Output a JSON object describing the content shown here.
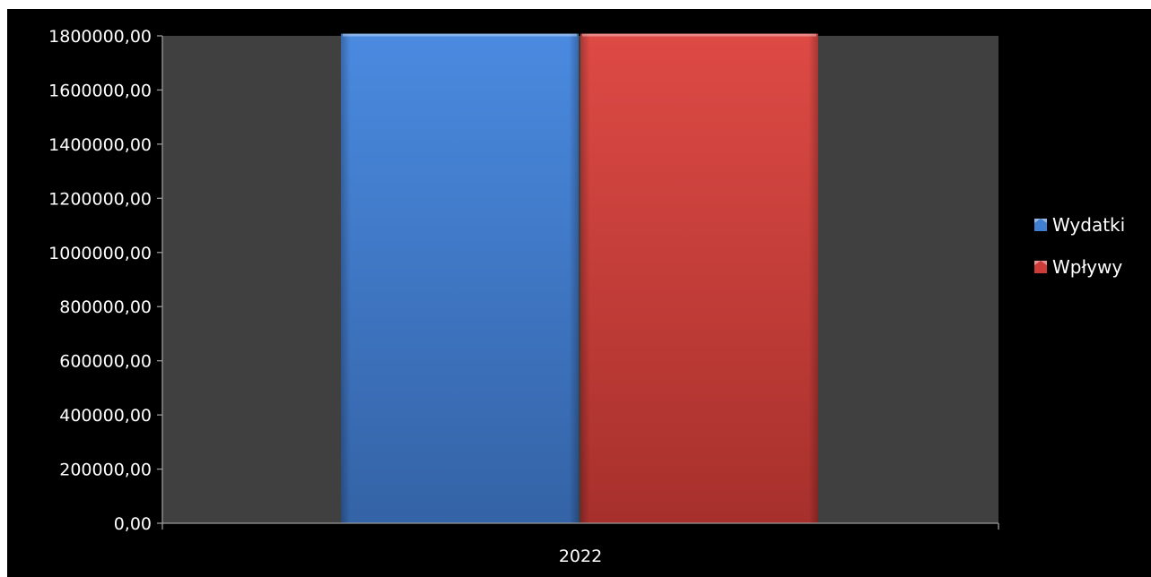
{
  "chart_data": {
    "type": "bar",
    "categories": [
      "2022"
    ],
    "series": [
      {
        "name": "Wydatki",
        "values": [
          1808000
        ],
        "color": "#3f7ed0"
      },
      {
        "name": "Wpływy",
        "values": [
          1808000
        ],
        "color": "#cd3c38"
      }
    ],
    "title": "",
    "xlabel": "",
    "ylabel": "",
    "ylim": [
      0,
      1800000
    ],
    "y_ticks": [
      "0,00",
      "200000,00",
      "400000,00",
      "600000,00",
      "800000,00",
      "1000000,00",
      "1200000,00",
      "1400000,00",
      "1600000,00",
      "1800000,00"
    ],
    "grid": false,
    "legend_position": "right",
    "background_color": "#000000",
    "plot_area_color": "#404040"
  }
}
